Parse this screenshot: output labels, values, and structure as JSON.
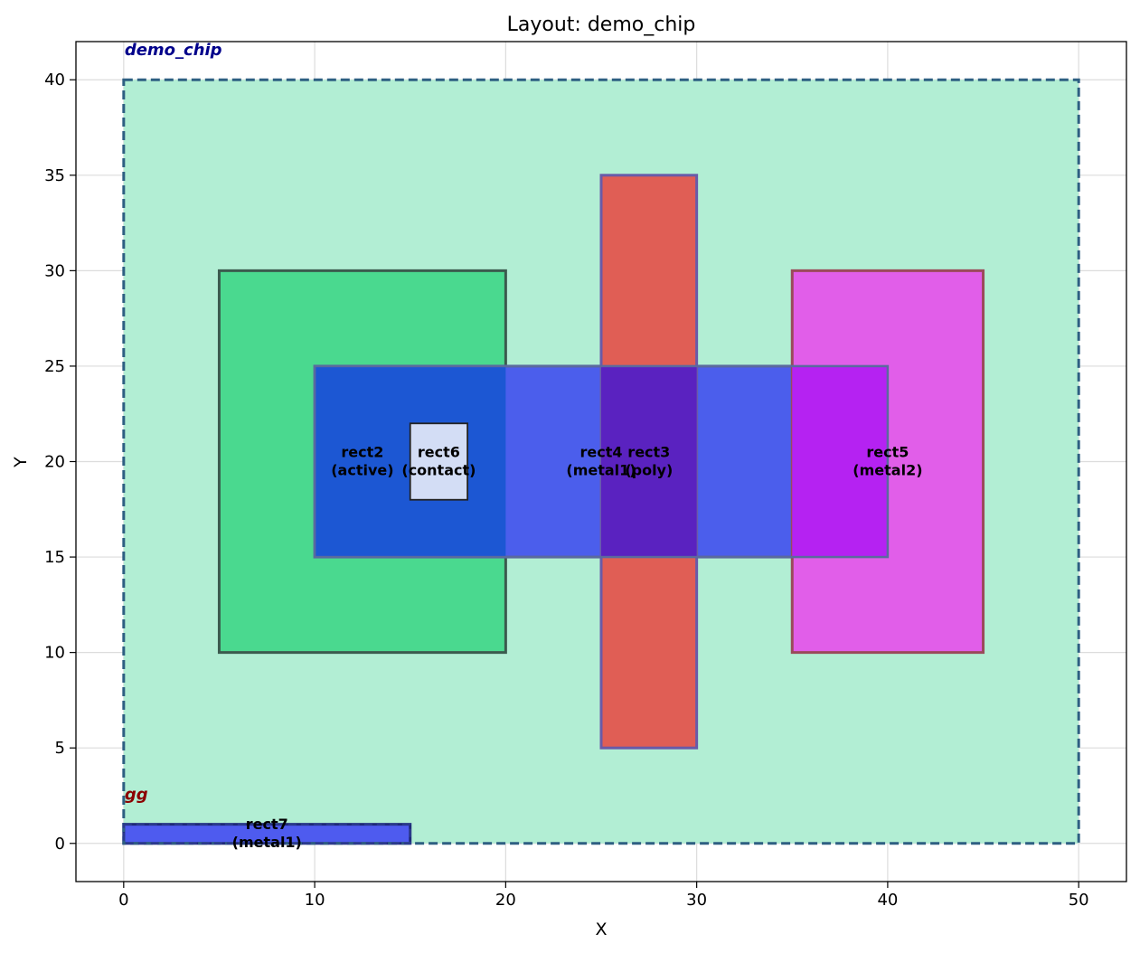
{
  "chart_data": {
    "type": "layout",
    "title": "Layout: demo_chip",
    "xlabel": "X",
    "ylabel": "Y",
    "xlim": [
      -2.5,
      52.5
    ],
    "ylim": [
      -2,
      42
    ],
    "xticks": [
      0,
      10,
      20,
      30,
      40,
      50
    ],
    "yticks": [
      0,
      5,
      10,
      15,
      20,
      25,
      30,
      35,
      40
    ],
    "grid": true,
    "cells": [
      {
        "name": "demo_chip",
        "x0": 0,
        "y0": 0,
        "x1": 50,
        "y1": 40,
        "fill": "#b2eed4",
        "stroke": "#2e5f82",
        "label_color": "#00008b"
      },
      {
        "name": "gg",
        "x0": 0,
        "y0": 0,
        "x1": 15,
        "y1": 1,
        "fill": "#4e5bef",
        "stroke": "#2b3a8c",
        "label_color": "#8b0000"
      }
    ],
    "rects": [
      {
        "name": "rect2",
        "layer": "active",
        "x0": 5,
        "y0": 10,
        "x1": 20,
        "y1": 30,
        "fill": "#4ad98f",
        "stroke": "#3b5a4e",
        "label_x": 12.5,
        "label_y": 20
      },
      {
        "name": "rect4",
        "layer": "metal1",
        "x0": 10,
        "y0": 15,
        "x1": 40,
        "y1": 25,
        "fill": "#4b5eec",
        "stroke": "#5a6a9e",
        "label_x": 25,
        "label_y": 20
      },
      {
        "name": "rect3",
        "layer": "poly",
        "x0": 25,
        "y0": 5,
        "x1": 30,
        "y1": 35,
        "fill": "#e05e55",
        "stroke": "#6a5aa8",
        "label_x": 27.5,
        "label_y": 20
      },
      {
        "name": "rect5",
        "layer": "metal2",
        "x0": 35,
        "y0": 10,
        "x1": 45,
        "y1": 30,
        "fill": "#e15ee9",
        "stroke": "#9a4a5a",
        "label_x": 40,
        "label_y": 20
      },
      {
        "name": "rect6",
        "layer": "contact",
        "x0": 15,
        "y0": 18,
        "x1": 18,
        "y1": 22,
        "fill": "#d3ddf5",
        "stroke": "#222222",
        "label_x": 16.5,
        "label_y": 20
      },
      {
        "name": "rect7",
        "layer": "metal1",
        "x0": 0,
        "y0": 0,
        "x1": 15,
        "y1": 1,
        "fill": "#4e5bef",
        "stroke": "#1f2a78",
        "label_x": 7.5,
        "label_y": 0.5
      }
    ],
    "overlaps": [
      {
        "x0": 10,
        "y0": 15,
        "x1": 20,
        "y1": 25,
        "fill": "#1c57d3"
      },
      {
        "x0": 25,
        "y0": 15,
        "x1": 30,
        "y1": 25,
        "fill": "#5a22c0"
      },
      {
        "x0": 35,
        "y0": 15,
        "x1": 40,
        "y1": 25,
        "fill": "#b522f2"
      }
    ]
  }
}
